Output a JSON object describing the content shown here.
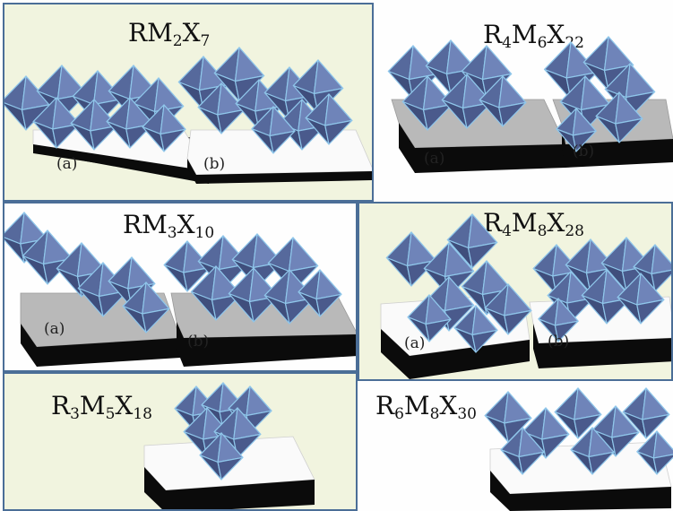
{
  "panels": [
    {
      "id": "rm2x7",
      "formula": [
        [
          "RM",
          "2"
        ],
        [
          "X",
          "7"
        ]
      ],
      "labels": [
        "(a)",
        "(b)"
      ]
    },
    {
      "id": "r4m6x22",
      "formula": [
        [
          "R",
          "4"
        ],
        [
          "M",
          "6"
        ],
        [
          "X",
          "22"
        ]
      ],
      "labels": [
        "(a)",
        "(b)"
      ]
    },
    {
      "id": "rm3x10",
      "formula": [
        [
          "RM",
          "3"
        ],
        [
          "X",
          "10"
        ]
      ],
      "labels": [
        "(a)",
        "(b)"
      ]
    },
    {
      "id": "r4m8x28",
      "formula": [
        [
          "R",
          "4"
        ],
        [
          "M",
          "8"
        ],
        [
          "X",
          "28"
        ]
      ],
      "labels": [
        "(a)",
        "(b)"
      ]
    },
    {
      "id": "r3m5x18",
      "formula": [
        [
          "R",
          "3"
        ],
        [
          "M",
          "5"
        ],
        [
          "X",
          "18"
        ]
      ],
      "labels": []
    },
    {
      "id": "r6m8x30",
      "formula": [
        [
          "R",
          "6"
        ],
        [
          "M",
          "8"
        ],
        [
          "X",
          "30"
        ]
      ],
      "labels": []
    }
  ],
  "colors": {
    "panel_beige": "#f1f4df",
    "panel_white": "#fefefe",
    "frame": "#4b6e97",
    "octahedron": "#56699c",
    "octahedron_edge": "#8fc6ea",
    "substrate_black": "#0b0b0b",
    "substrate_gray": "#b9b9b9"
  }
}
